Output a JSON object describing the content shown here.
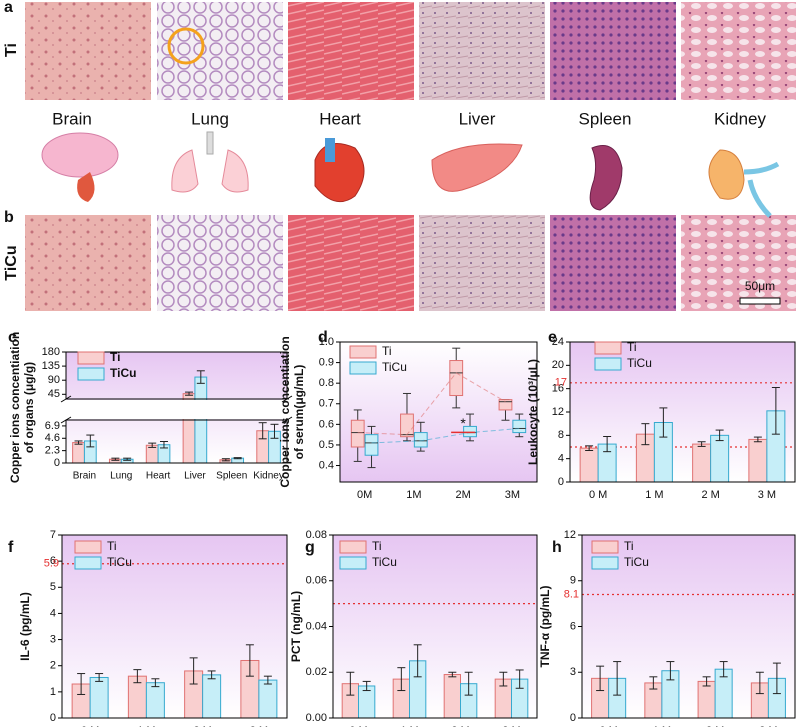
{
  "figure": {
    "label_a": "a",
    "row_a": "Ti",
    "organs": [
      "Brain",
      "Lung",
      "Heart",
      "Liver",
      "Spleen",
      "Kidney"
    ],
    "label_b": "b",
    "row_b": "TiCu",
    "scale_bar": "50μm"
  },
  "chart_data": [
    {
      "type": "bar",
      "panel": "c",
      "ylabel": [
        "Copper ions concentiation",
        "of organs (μg/g)"
      ],
      "categories": [
        "Brain",
        "Lung",
        "Heart",
        "Liver",
        "Spleen",
        "Kidney"
      ],
      "series": [
        {
          "name": "Ti",
          "color": "#f9cfcf",
          "edge": "#e07272",
          "values": [
            3.8,
            0.7,
            3.3,
            47,
            0.6,
            6.0
          ],
          "errors": [
            0.3,
            0.2,
            0.4,
            5,
            0.2,
            1.5
          ]
        },
        {
          "name": "TiCu",
          "color": "#c6eef8",
          "edge": "#36a9cf",
          "values": [
            4.1,
            0.7,
            3.4,
            100,
            0.9,
            5.9
          ],
          "errors": [
            1.1,
            0.2,
            0.6,
            20,
            0.1,
            1.3
          ]
        }
      ],
      "ylim": [
        0,
        180
      ],
      "ybreak": [
        8,
        30
      ],
      "yticks": [
        0,
        2.3,
        4.6,
        6.9,
        45,
        90,
        135,
        180
      ]
    },
    {
      "type": "box",
      "panel": "d",
      "ylabel": [
        "Copper ions concentiation",
        "of serum(μg/mL)"
      ],
      "categories": [
        "0M",
        "1M",
        "2M",
        "3M"
      ],
      "series": [
        {
          "name": "Ti",
          "color": "#f9cfcf",
          "edge": "#e07272",
          "values": [
            [
              0.42,
              0.49,
              0.56,
              0.62,
              0.67
            ],
            [
              0.52,
              0.54,
              0.55,
              0.65,
              0.75
            ],
            [
              0.68,
              0.74,
              0.85,
              0.91,
              0.97
            ],
            [
              0.62,
              0.67,
              0.71,
              0.72,
              0.72
            ]
          ]
        },
        {
          "name": "TiCu",
          "color": "#c6eef8",
          "edge": "#36a9cf",
          "values": [
            [
              0.39,
              0.45,
              0.51,
              0.55,
              0.59
            ],
            [
              0.47,
              0.49,
              0.52,
              0.56,
              0.61
            ],
            [
              0.52,
              0.54,
              0.56,
              0.59,
              0.65
            ],
            [
              0.54,
              0.56,
              0.58,
              0.62,
              0.65
            ]
          ]
        }
      ],
      "annotation": "*",
      "ylim": [
        0.32,
        1.0
      ],
      "yticks": [
        0.4,
        0.5,
        0.6,
        0.7,
        0.8,
        0.9,
        {
          "value": 1,
          "label": "1.0"
        }
      ]
    },
    {
      "type": "bar",
      "panel": "e",
      "ylabel": [
        "Leukocyte (10³/μL)"
      ],
      "categories": [
        "0 M",
        "1 M",
        "2 M",
        "3 M"
      ],
      "series": [
        {
          "name": "Ti",
          "color": "#f9cfcf",
          "edge": "#e07272",
          "values": [
            5.8,
            8.2,
            6.5,
            7.3
          ],
          "errors": [
            0.4,
            1.8,
            0.4,
            0.4
          ]
        },
        {
          "name": "TiCu",
          "color": "#c6eef8",
          "edge": "#36a9cf",
          "values": [
            6.5,
            10.2,
            8.0,
            12.2
          ],
          "errors": [
            1.3,
            2.5,
            0.9,
            4
          ]
        }
      ],
      "ref_lines": [
        {
          "value": 17,
          "label": "17"
        },
        {
          "value": 6
        }
      ],
      "ylim": [
        0,
        24
      ],
      "yticks": [
        0,
        4,
        8,
        12,
        16,
        20,
        24
      ]
    },
    {
      "type": "bar",
      "panel": "f",
      "ylabel": [
        "IL-6 (pg/mL)"
      ],
      "categories": [
        "0 M",
        "1 M",
        "2 M",
        "3 M"
      ],
      "series": [
        {
          "name": "Ti",
          "color": "#f9cfcf",
          "edge": "#e07272",
          "values": [
            1.3,
            1.6,
            1.8,
            2.2
          ],
          "errors": [
            0.4,
            0.25,
            0.5,
            0.6
          ]
        },
        {
          "name": "TiCu",
          "color": "#c6eef8",
          "edge": "#36a9cf",
          "values": [
            1.55,
            1.35,
            1.65,
            1.45
          ],
          "errors": [
            0.15,
            0.15,
            0.15,
            0.15
          ]
        }
      ],
      "ref_lines": [
        {
          "value": 5.9,
          "label": "5.9"
        }
      ],
      "ylim": [
        0,
        7
      ],
      "yticks": [
        0,
        1,
        2,
        3,
        4,
        5,
        6,
        7
      ]
    },
    {
      "type": "bar",
      "panel": "g",
      "ylabel": [
        "PCT (ng/mL)"
      ],
      "categories": [
        "0 M",
        "1 M",
        "2 M",
        "3 M"
      ],
      "series": [
        {
          "name": "Ti",
          "color": "#f9cfcf",
          "edge": "#e07272",
          "values": [
            0.015,
            0.017,
            0.019,
            0.017
          ],
          "errors": [
            0.005,
            0.005,
            0.001,
            0.003
          ]
        },
        {
          "name": "TiCu",
          "color": "#c6eef8",
          "edge": "#36a9cf",
          "values": [
            0.014,
            0.025,
            0.015,
            0.017
          ],
          "errors": [
            0.002,
            0.007,
            0.005,
            0.004
          ]
        }
      ],
      "ref_lines": [
        {
          "value": 0.05
        }
      ],
      "ylim": [
        0,
        0.08
      ],
      "yticks": [
        {
          "value": 0,
          "label": "0.00"
        },
        0.02,
        0.04,
        0.06,
        0.08
      ]
    },
    {
      "type": "bar",
      "panel": "h",
      "ylabel": [
        "TNF-α (pg/mL)"
      ],
      "categories": [
        "0 M",
        "1 M",
        "2 M",
        "3 M"
      ],
      "series": [
        {
          "name": "Ti",
          "color": "#f9cfcf",
          "edge": "#e07272",
          "values": [
            2.6,
            2.3,
            2.4,
            2.3
          ],
          "errors": [
            0.8,
            0.4,
            0.3,
            0.7
          ]
        },
        {
          "name": "TiCu",
          "color": "#c6eef8",
          "edge": "#36a9cf",
          "values": [
            2.6,
            3.1,
            3.2,
            2.6
          ],
          "errors": [
            1.1,
            0.6,
            0.5,
            1.0
          ]
        }
      ],
      "ref_lines": [
        {
          "value": 8.1,
          "label": "8.1"
        }
      ],
      "ylim": [
        0,
        12
      ],
      "yticks": [
        0,
        3,
        6,
        9,
        12
      ]
    }
  ]
}
